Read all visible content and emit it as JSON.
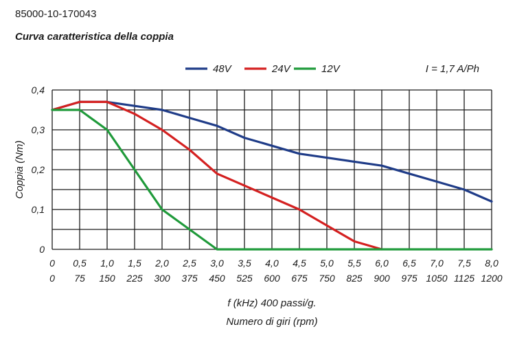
{
  "header": {
    "code": "85000-10-170043",
    "title": "Curva caratteristica della coppia"
  },
  "colors": {
    "48V": "#1f3c88",
    "24V": "#d42020",
    "12V": "#1f9a3a",
    "grid": "#1a1a1a"
  },
  "chart_data": {
    "type": "line",
    "title": "Curva caratteristica della coppia",
    "annotation": "I = 1,7 A/Ph",
    "ylabel": "Coppia (Nm)",
    "xlabel": "f (kHz) 400 passi/g.",
    "xlabel2": "Numero di giri (rpm)",
    "xlim": [
      0,
      8
    ],
    "ylim": [
      0,
      0.4
    ],
    "grid": true,
    "legend_position": "top",
    "x_ticks": [
      "0",
      "0,5",
      "1,0",
      "1,5",
      "2,0",
      "2,5",
      "3,0",
      "3,5",
      "4,0",
      "4,5",
      "5,0",
      "5,5",
      "6,0",
      "6,5",
      "7,0",
      "7,5",
      "8,0"
    ],
    "x_ticks_rpm": [
      "0",
      "75",
      "150",
      "225",
      "300",
      "375",
      "450",
      "525",
      "600",
      "675",
      "750",
      "825",
      "900",
      "975",
      "1050",
      "1125",
      "1200"
    ],
    "y_ticks": [
      "0",
      "0,1",
      "0,2",
      "0,3",
      "0,4"
    ],
    "series": [
      {
        "name": "48V",
        "color": "#1f3c88",
        "x": [
          0,
          0.5,
          1.0,
          1.5,
          2.0,
          2.5,
          3.0,
          3.5,
          4.0,
          4.5,
          5.0,
          5.5,
          6.0,
          6.5,
          7.0,
          7.5,
          8.0
        ],
        "y": [
          0.35,
          0.37,
          0.37,
          0.36,
          0.35,
          0.33,
          0.31,
          0.28,
          0.26,
          0.24,
          0.23,
          0.22,
          0.21,
          0.19,
          0.17,
          0.15,
          0.12
        ]
      },
      {
        "name": "24V",
        "color": "#d42020",
        "x": [
          0,
          0.5,
          1.0,
          1.5,
          2.0,
          2.5,
          3.0,
          3.5,
          4.0,
          4.5,
          5.0,
          5.5,
          6.0
        ],
        "y": [
          0.35,
          0.37,
          0.37,
          0.34,
          0.3,
          0.25,
          0.19,
          0.16,
          0.13,
          0.1,
          0.06,
          0.02,
          0
        ]
      },
      {
        "name": "12V",
        "color": "#1f9a3a",
        "x": [
          0,
          0.5,
          1.0,
          1.5,
          2.0,
          2.5,
          3.0,
          8.0
        ],
        "y": [
          0.35,
          0.35,
          0.3,
          0.2,
          0.1,
          0.05,
          0,
          0
        ]
      }
    ]
  }
}
